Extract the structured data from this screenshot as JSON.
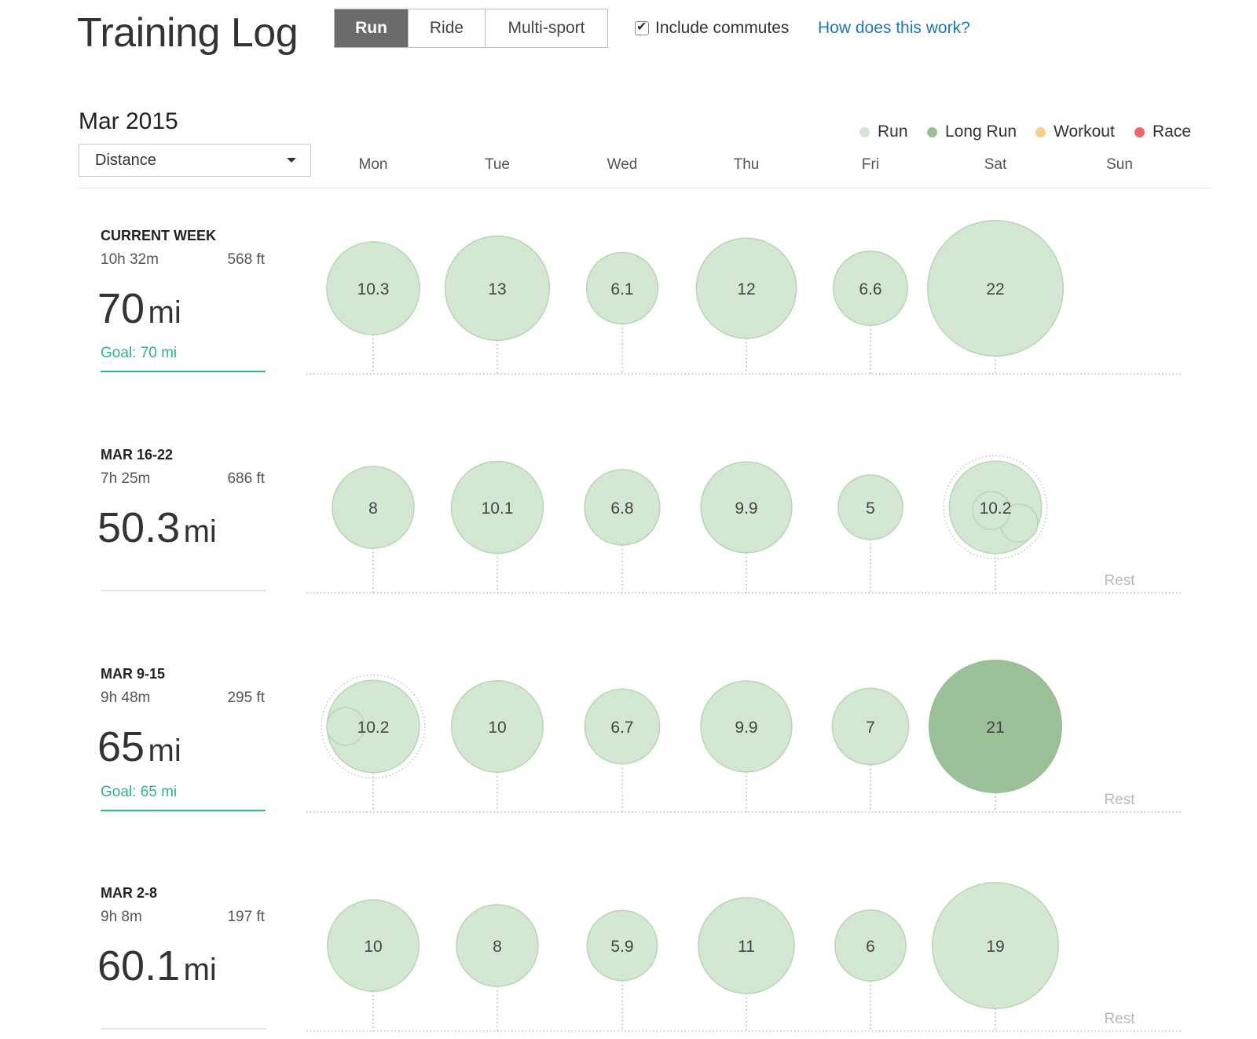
{
  "header": {
    "title": "Training Log",
    "sport_tabs": [
      {
        "label": "Run",
        "active": true
      },
      {
        "label": "Ride",
        "active": false
      },
      {
        "label": "Multi-sport",
        "active": false
      }
    ],
    "include_commutes": {
      "label": "Include commutes",
      "checked": true
    },
    "help_link": "How does this work?"
  },
  "controls": {
    "month": "Mar 2015",
    "metric_select": "Distance"
  },
  "legend": [
    {
      "label": "Run",
      "color": "#d4e7d3"
    },
    {
      "label": "Long Run",
      "color": "#9bbf97"
    },
    {
      "label": "Workout",
      "color": "#f9cf8a"
    },
    {
      "label": "Race",
      "color": "#ec6a6a"
    }
  ],
  "days": [
    "Mon",
    "Tue",
    "Wed",
    "Thu",
    "Fri",
    "Sat",
    "Sun"
  ],
  "colors": {
    "run_fill": "#d4e7d3",
    "run_stroke": "#b7d6b4",
    "long_run_fill": "#9bbf97",
    "goal_green": "#2eb87e",
    "rule_grey": "#e4e4e4"
  },
  "rest_label": "Rest",
  "weeks": [
    {
      "title": "CURRENT WEEK",
      "time": "10h 32m",
      "elevation": "568 ft",
      "distance_value": "70",
      "distance_unit": "mi",
      "goal": "Goal: 70 mi",
      "activities": [
        {
          "day": "Mon",
          "value": "10.3",
          "type": "run"
        },
        {
          "day": "Tue",
          "value": "13",
          "type": "run"
        },
        {
          "day": "Wed",
          "value": "6.1",
          "type": "run"
        },
        {
          "day": "Thu",
          "value": "12",
          "type": "run"
        },
        {
          "day": "Fri",
          "value": "6.6",
          "type": "run"
        },
        {
          "day": "Sat",
          "value": "22",
          "type": "run"
        }
      ],
      "rest_days": []
    },
    {
      "title": "MAR 16-22",
      "time": "7h 25m",
      "elevation": "686 ft",
      "distance_value": "50.3",
      "distance_unit": "mi",
      "goal": "",
      "activities": [
        {
          "day": "Mon",
          "value": "8",
          "type": "run"
        },
        {
          "day": "Tue",
          "value": "10.1",
          "type": "run"
        },
        {
          "day": "Wed",
          "value": "6.8",
          "type": "run"
        },
        {
          "day": "Thu",
          "value": "9.9",
          "type": "run"
        },
        {
          "day": "Fri",
          "value": "5",
          "type": "run"
        },
        {
          "day": "Sat",
          "value": "10.2",
          "type": "run",
          "multiple": true
        }
      ],
      "rest_days": [
        "Sun"
      ]
    },
    {
      "title": "MAR 9-15",
      "time": "9h 48m",
      "elevation": "295 ft",
      "distance_value": "65",
      "distance_unit": "mi",
      "goal": "Goal: 65 mi",
      "activities": [
        {
          "day": "Mon",
          "value": "10.2",
          "type": "run",
          "multiple": true
        },
        {
          "day": "Tue",
          "value": "10",
          "type": "run"
        },
        {
          "day": "Wed",
          "value": "6.7",
          "type": "run"
        },
        {
          "day": "Thu",
          "value": "9.9",
          "type": "run"
        },
        {
          "day": "Fri",
          "value": "7",
          "type": "run"
        },
        {
          "day": "Sat",
          "value": "21",
          "type": "long_run"
        }
      ],
      "rest_days": [
        "Sun"
      ]
    },
    {
      "title": "MAR 2-8",
      "time": "9h 8m",
      "elevation": "197 ft",
      "distance_value": "60.1",
      "distance_unit": "mi",
      "goal": "",
      "activities": [
        {
          "day": "Mon",
          "value": "10",
          "type": "run"
        },
        {
          "day": "Tue",
          "value": "8",
          "type": "run"
        },
        {
          "day": "Wed",
          "value": "5.9",
          "type": "run"
        },
        {
          "day": "Thu",
          "value": "11",
          "type": "run"
        },
        {
          "day": "Fri",
          "value": "6",
          "type": "run"
        },
        {
          "day": "Sat",
          "value": "19",
          "type": "run"
        }
      ],
      "rest_days": [
        "Sun"
      ]
    }
  ]
}
